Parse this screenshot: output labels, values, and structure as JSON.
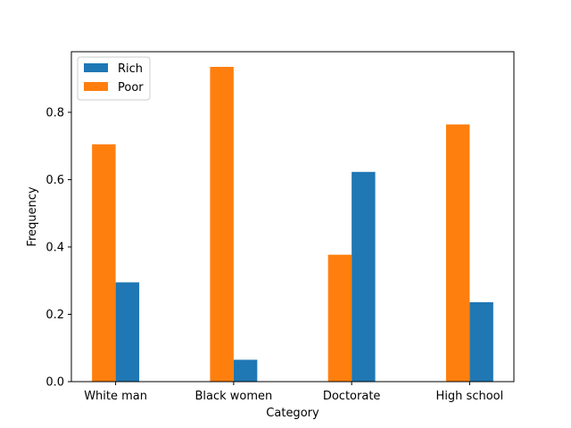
{
  "chart_data": {
    "type": "bar",
    "categories": [
      "White man",
      "Black women",
      "Doctorate",
      "High school"
    ],
    "series": [
      {
        "name": "Rich",
        "color": "#1f77b4",
        "values": [
          0.295,
          0.065,
          0.623,
          0.236
        ]
      },
      {
        "name": "Poor",
        "color": "#ff7f0e",
        "values": [
          0.705,
          0.935,
          0.377,
          0.764
        ]
      }
    ],
    "xlabel": "Category",
    "ylabel": "Frequency",
    "ylim": [
      0,
      0.98
    ],
    "yticks": [
      "0.0",
      "0.2",
      "0.4",
      "0.6",
      "0.8"
    ],
    "grid": false,
    "legend_position": "top-left"
  }
}
